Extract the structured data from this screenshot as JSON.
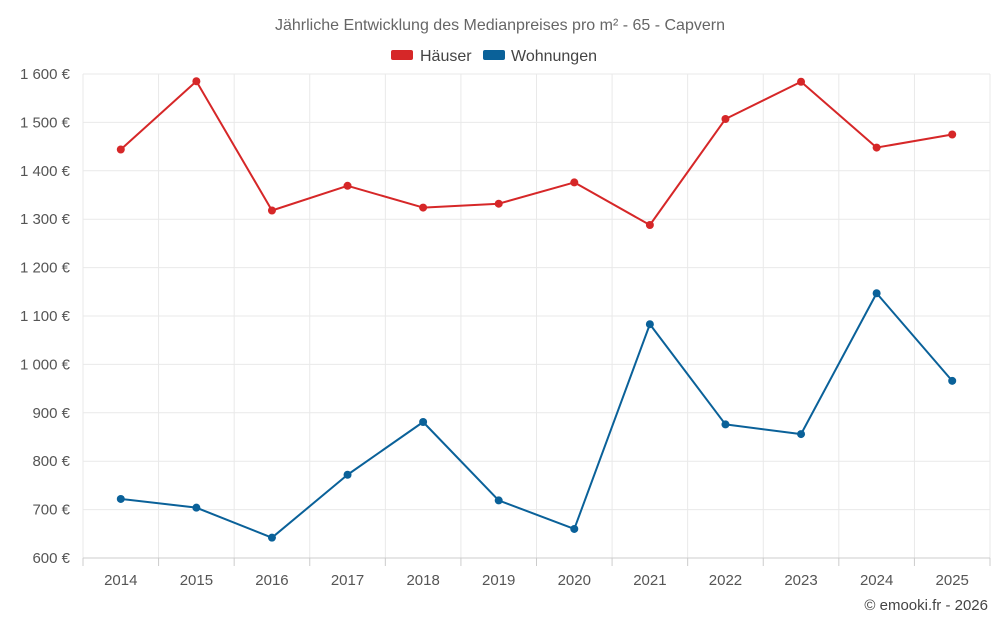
{
  "chart_data": {
    "type": "line",
    "title": "Jährliche Entwicklung des Medianpreises pro m² - 65 - Capvern",
    "categories": [
      "2014",
      "2015",
      "2016",
      "2017",
      "2018",
      "2019",
      "2020",
      "2021",
      "2022",
      "2023",
      "2024",
      "2025"
    ],
    "series": [
      {
        "name": "Häuser",
        "color": "#d62728",
        "values": [
          1444,
          1585,
          1318,
          1369,
          1324,
          1332,
          1376,
          1288,
          1507,
          1584,
          1448,
          1475
        ]
      },
      {
        "name": "Wohnungen",
        "color": "#0a6199",
        "values": [
          722,
          704,
          642,
          772,
          881,
          719,
          660,
          1083,
          876,
          856,
          1147,
          966
        ]
      }
    ],
    "y_ticks": [
      "600 €",
      "700 €",
      "800 €",
      "900 €",
      "1 000 €",
      "1 100 €",
      "1 200 €",
      "1 300 €",
      "1 400 €",
      "1 500 €",
      "1 600 €"
    ],
    "ylim": [
      600,
      1600
    ],
    "grid": true,
    "legend": "top-center"
  },
  "credit": "© emooki.fr - 2026"
}
